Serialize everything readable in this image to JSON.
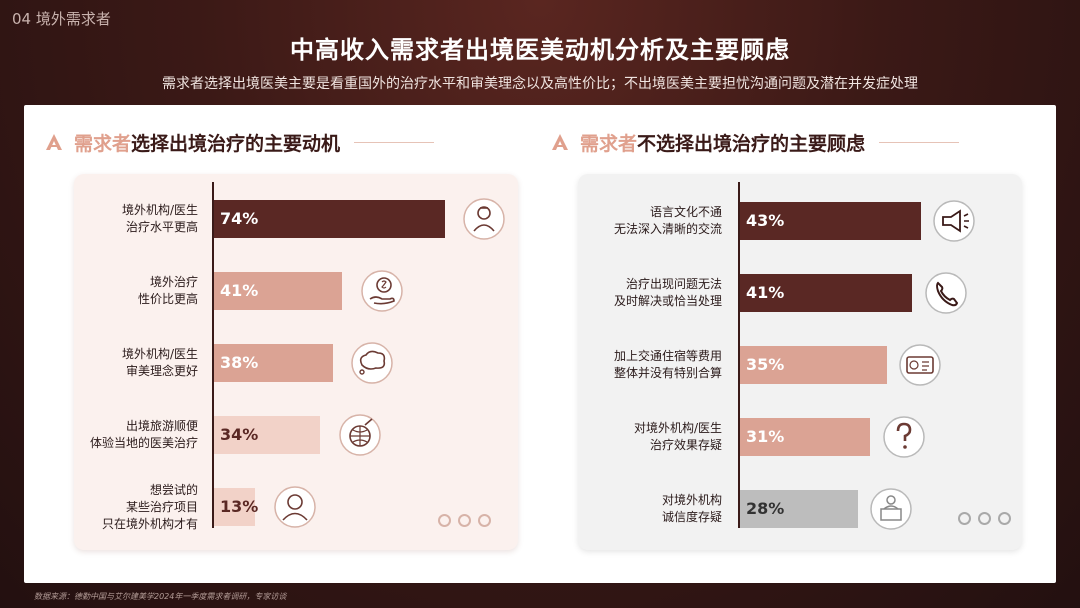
{
  "section_label": "04 境外需求者",
  "title": "中高收入需求者出境医美动机分析及主要顾虑",
  "subtitle": "需求者选择出境医美主要是看重国外的治疗水平和审美理念以及高性价比；不出境医美主要担忧沟通问题及潜在并发症处理",
  "left_heading": {
    "accent": "需求者",
    "rest": "选择出境治疗的主要动机"
  },
  "right_heading": {
    "accent": "需求者",
    "rest": "不选择出境治疗的主要顾虑"
  },
  "source": "数据来源：德勤中国与艾尔建美学2024年一季度需求者调研，专家访谈",
  "colors": {
    "dark": "#5a2824",
    "mid": "#dba394",
    "light": "#f2d2c8",
    "gray": "#bdbdbd"
  },
  "chart_data": [
    {
      "type": "bar",
      "orientation": "horizontal",
      "categories": [
        "境外机构/医生\n治疗水平更高",
        "境外治疗\n性价比更高",
        "境外机构/医生\n审美理念更好",
        "出境旅游顺便\n体验当地的医美治疗",
        "想尝试的\n某些治疗项目\n只在境外机构才有"
      ],
      "values": [
        74,
        41,
        38,
        34,
        13
      ],
      "value_labels": [
        "74%",
        "41%",
        "38%",
        "34%",
        "13%"
      ],
      "bar_colors": [
        "#5a2824",
        "#dba394",
        "#dba394",
        "#f2d2c8",
        "#f2d2c8"
      ],
      "icons": [
        "doctor-icon",
        "money-hand-icon",
        "thought-bubble-icon",
        "globe-target-icon",
        "person-icon"
      ],
      "xlim": [
        0,
        100
      ]
    },
    {
      "type": "bar",
      "orientation": "horizontal",
      "categories": [
        "语言文化不通\n无法深入清晰的交流",
        "治疗出现问题无法\n及时解决或恰当处理",
        "加上交通住宿等费用\n整体并没有特别合算",
        "对境外机构/医生\n治疗效果存疑",
        "对境外机构\n诚信度存疑"
      ],
      "values": [
        43,
        41,
        35,
        31,
        28
      ],
      "value_labels": [
        "43%",
        "41%",
        "35%",
        "31%",
        "28%"
      ],
      "bar_colors": [
        "#5a2824",
        "#5a2824",
        "#dba394",
        "#dba394",
        "#bdbdbd"
      ],
      "icons": [
        "megaphone-icon",
        "phone-icon",
        "bill-icon",
        "question-icon",
        "reception-icon"
      ],
      "xlim": [
        0,
        100
      ]
    }
  ]
}
